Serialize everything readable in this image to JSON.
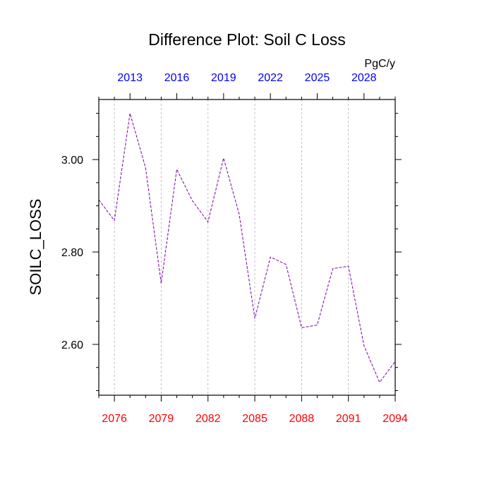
{
  "chart_data": {
    "type": "line",
    "title": "Difference Plot: Soil C Loss",
    "ylabel": "SOILC_LOSS",
    "unit_label": "PgC/y",
    "xlim": [
      2075,
      2094
    ],
    "ylim": [
      2.49,
      3.13
    ],
    "grid": "vertical dashed at bottom ticks",
    "bottom_axis": {
      "ticks": [
        2076,
        2079,
        2082,
        2085,
        2088,
        2091,
        2094
      ],
      "labels": [
        "2076",
        "2079",
        "2082",
        "2085",
        "2088",
        "2091",
        "2094"
      ],
      "color": "#ff0000"
    },
    "top_axis": {
      "labels": [
        "2013",
        "2016",
        "2019",
        "2022",
        "2025",
        "2028"
      ],
      "positions": [
        2077,
        2080,
        2083,
        2086,
        2089,
        2092
      ],
      "color": "#0000ff"
    },
    "y_ticks": [
      2.6,
      2.8,
      3.0
    ],
    "y_tick_labels": [
      "2.60",
      "2.80",
      "3.00"
    ],
    "series": [
      {
        "color": "#7a00a8",
        "x": [
          2075,
          2076,
          2077,
          2078,
          2079,
          2080,
          2081,
          2082,
          2083,
          2084,
          2085,
          2086,
          2087,
          2088,
          2089,
          2090,
          2091,
          2092,
          2093,
          2094
        ],
        "y": [
          2.913,
          2.868,
          3.1,
          2.982,
          2.732,
          2.979,
          2.911,
          2.865,
          3.003,
          2.882,
          2.656,
          2.789,
          2.773,
          2.636,
          2.642,
          2.764,
          2.769,
          2.597,
          2.518,
          2.563
        ]
      }
    ]
  }
}
